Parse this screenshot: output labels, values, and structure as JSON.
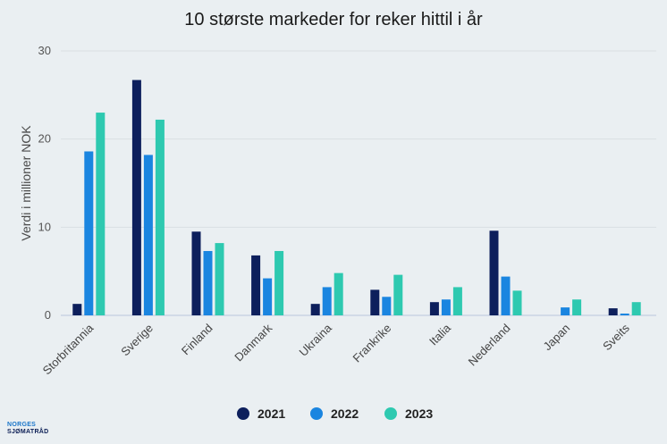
{
  "chart_data": {
    "type": "bar",
    "title": "10 største markeder for reker hittil i år",
    "xlabel": "",
    "ylabel": "Verdi i millioner NOK",
    "ylim": [
      0,
      30
    ],
    "yticks": [
      0,
      10,
      20,
      30
    ],
    "grid": true,
    "legend_position": "bottom",
    "categories": [
      "Storbritannia",
      "Sverige",
      "Finland",
      "Danmark",
      "Ukraina",
      "Frankrike",
      "Italia",
      "Nederland",
      "Japan",
      "Sveits"
    ],
    "series": [
      {
        "name": "2021",
        "color": "#0d1f5c",
        "values": [
          1.3,
          26.7,
          9.5,
          6.8,
          1.3,
          2.9,
          1.5,
          9.6,
          0.0,
          0.8
        ]
      },
      {
        "name": "2022",
        "color": "#1a85e0",
        "values": [
          18.6,
          18.2,
          7.3,
          4.2,
          3.2,
          2.1,
          1.8,
          4.4,
          0.9,
          0.2
        ]
      },
      {
        "name": "2023",
        "color": "#2ec9b0",
        "values": [
          23.0,
          22.2,
          8.2,
          7.3,
          4.8,
          4.6,
          3.2,
          2.8,
          1.8,
          1.5
        ]
      }
    ]
  },
  "logo": {
    "line1": "NORGES",
    "line2": "SJØMATRÅD"
  }
}
